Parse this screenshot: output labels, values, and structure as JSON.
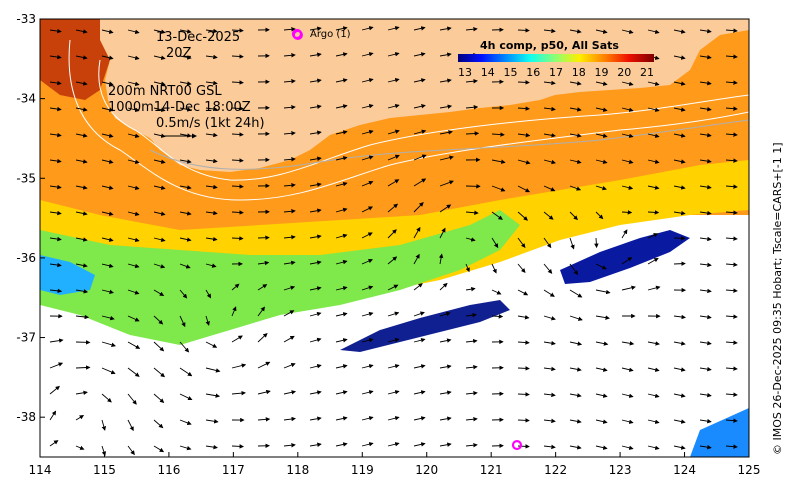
{
  "map": {
    "lon_ticks": [
      "114",
      "115",
      "116",
      "117",
      "118",
      "119",
      "120",
      "121",
      "122",
      "123",
      "124",
      "125"
    ],
    "lat_ticks": [
      "-33",
      "-34",
      "-35",
      "-36",
      "-37",
      "-38"
    ],
    "lon_range": [
      114,
      125
    ],
    "lat_range": [
      -38.5,
      -33
    ]
  },
  "annotations": {
    "date": "13-Dec-2025",
    "time": "20Z",
    "depth_line1": "200m  NRT00 GSL",
    "depth_line2": "1000m14-Dec 18:00Z",
    "scale_text": "0.5m/s (1kt 24h)",
    "argo_label": "Argo (1)",
    "credit": "© IMOS 26-Dec-2025 09:35 Hobart; Tscale=CARS+[-1 1]"
  },
  "colorbar": {
    "title": "4h comp, p50, All Sats",
    "labels": [
      "13",
      "14",
      "15",
      "16",
      "17",
      "18",
      "19",
      "20",
      "21"
    ],
    "colors": [
      "#00007f",
      "#0010ff",
      "#0090ff",
      "#10ffef",
      "#8fff70",
      "#ffee00",
      "#ff8000",
      "#ee1000",
      "#7f0000"
    ]
  },
  "argo_floats": [
    {
      "lon": 118.0,
      "lat": -33.2
    },
    {
      "lon": 121.4,
      "lat": -38.35
    }
  ],
  "colors": {
    "land": "#fbcb9a",
    "argo": "#ff00ff",
    "no_data": "#ffffff"
  }
}
